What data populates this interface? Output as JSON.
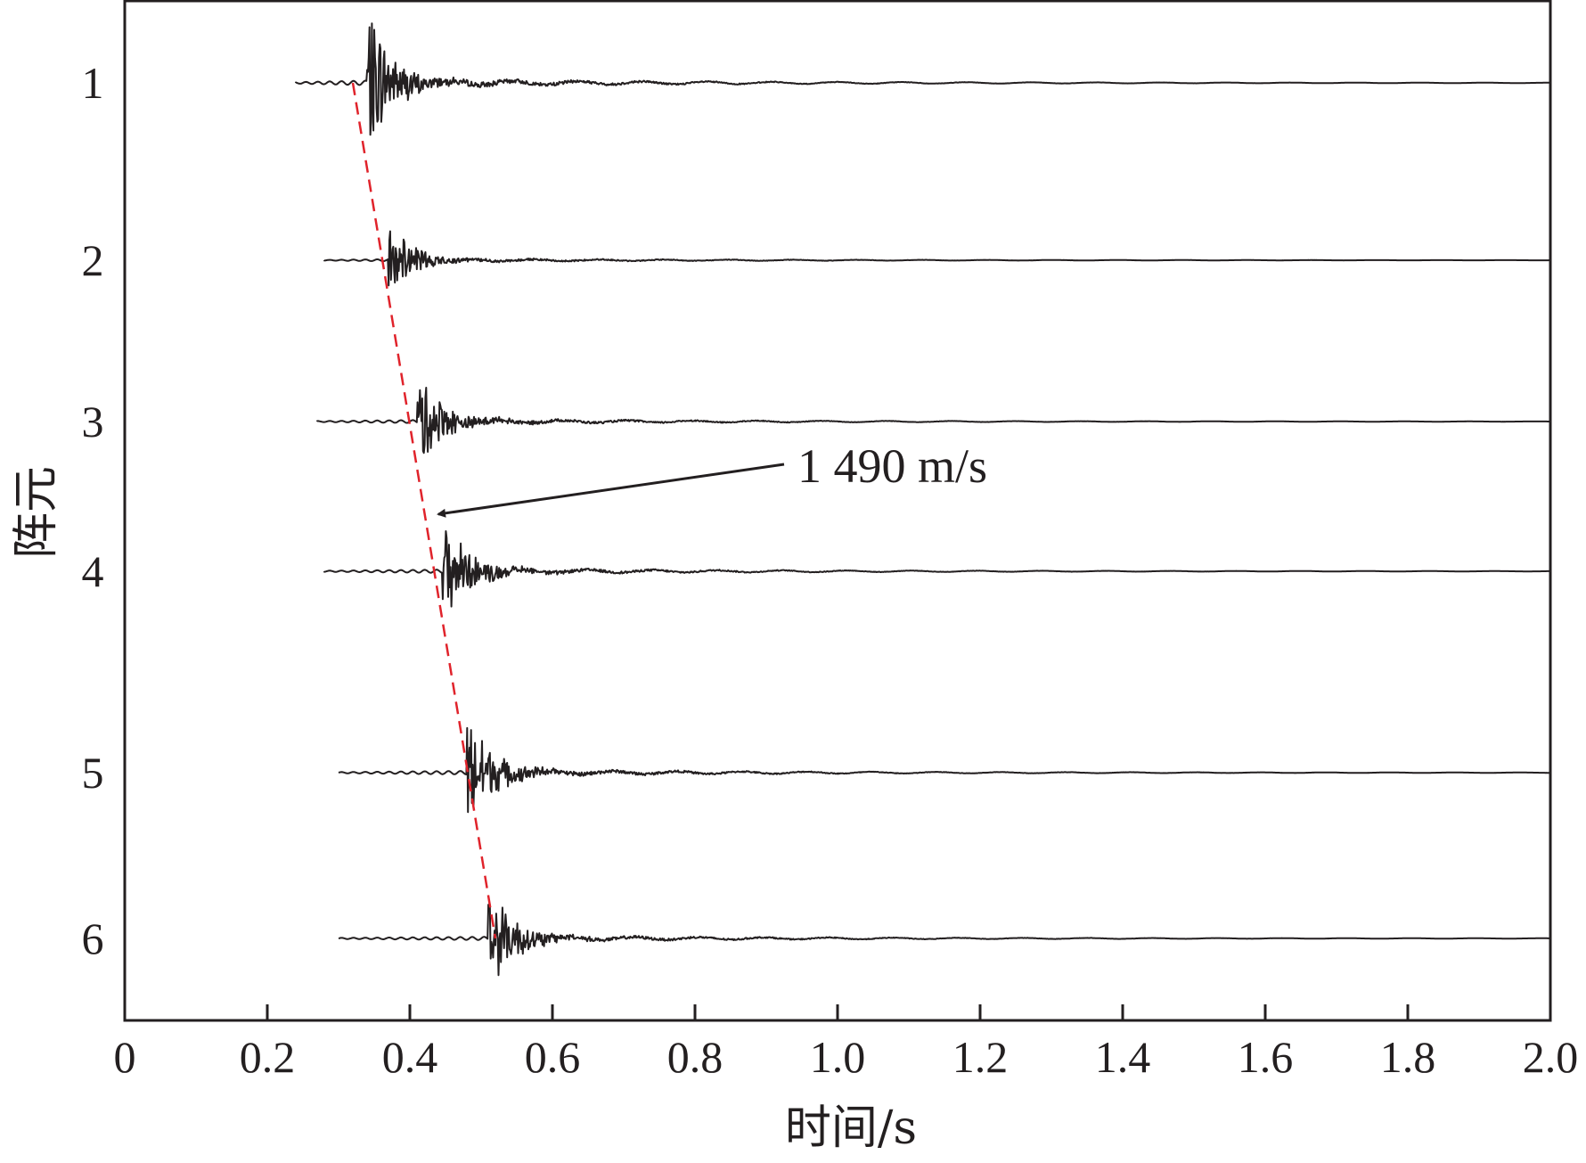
{
  "chart_data": {
    "type": "line",
    "title": "",
    "xlabel": "时间/s",
    "ylabel": "阵元",
    "xlim": [
      0,
      2.0
    ],
    "x_ticks": [
      "0",
      "0.2",
      "0.4",
      "0.6",
      "0.8",
      "1.0",
      "1.2",
      "1.4",
      "1.6",
      "1.8",
      "2.0"
    ],
    "y_ticks": [
      "1",
      "2",
      "3",
      "4",
      "5",
      "6"
    ],
    "grid": false,
    "series": [
      {
        "name": "1",
        "onset_time": 0.34,
        "peak_amplitude": 0.78,
        "pre_onset_start": 0.24
      },
      {
        "name": "2",
        "onset_time": 0.37,
        "peak_amplitude": 0.35,
        "pre_onset_start": 0.28
      },
      {
        "name": "3",
        "onset_time": 0.41,
        "peak_amplitude": 0.5,
        "pre_onset_start": 0.27
      },
      {
        "name": "4",
        "onset_time": 0.445,
        "peak_amplitude": 0.55,
        "pre_onset_start": 0.28
      },
      {
        "name": "5",
        "onset_time": 0.48,
        "peak_amplitude": 0.6,
        "pre_onset_start": 0.3
      },
      {
        "name": "6",
        "onset_time": 0.51,
        "peak_amplitude": 0.55,
        "pre_onset_start": 0.3
      }
    ],
    "arrival_line": {
      "color": "#e0232b",
      "style": "dashed",
      "start_time": 0.32,
      "end_time": 0.52
    },
    "annotation": {
      "text": "1 490 m/s"
    },
    "colors": {
      "trace": "#231f20",
      "axis": "#231f20",
      "arrival": "#e0232b"
    }
  }
}
